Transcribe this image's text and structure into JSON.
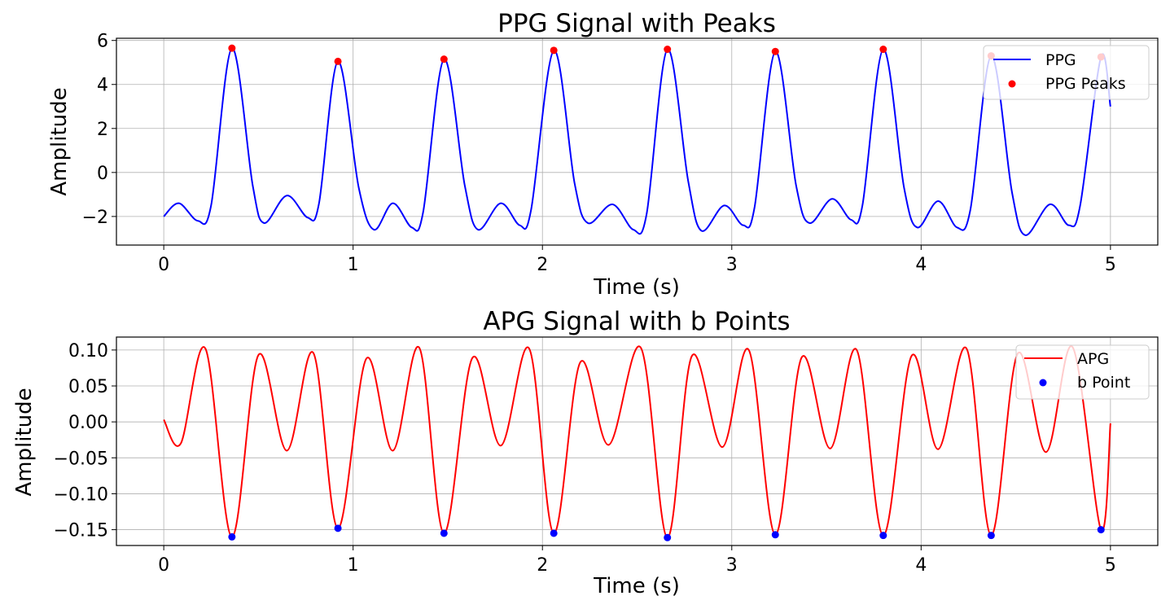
{
  "chart_data": [
    {
      "type": "line",
      "title": "PPG Signal with Peaks",
      "xlabel": "Time (s)",
      "ylabel": "Amplitude",
      "xlim": [
        -0.25,
        5.25
      ],
      "ylim": [
        -3.3,
        6.1
      ],
      "xticks": [
        0,
        1,
        2,
        3,
        4,
        5
      ],
      "xtick_labels": [
        "0",
        "1",
        "2",
        "3",
        "4",
        "5"
      ],
      "yticks": [
        -2,
        0,
        2,
        4,
        6
      ],
      "ytick_labels": [
        "−2",
        "0",
        "2",
        "4",
        "6"
      ],
      "grid": true,
      "legend_position": "top-right",
      "series": [
        {
          "name": "PPG",
          "kind": "line",
          "color": "#0000ff",
          "x": [
            0.0,
            0.08,
            0.18,
            0.25,
            0.36,
            0.47,
            0.53,
            0.65,
            0.76,
            0.82,
            0.92,
            1.03,
            1.11,
            1.21,
            1.31,
            1.37,
            1.48,
            1.59,
            1.66,
            1.78,
            1.88,
            1.94,
            2.06,
            2.17,
            2.24,
            2.37,
            2.48,
            2.55,
            2.66,
            2.77,
            2.84,
            2.96,
            3.06,
            3.12,
            3.23,
            3.34,
            3.41,
            3.53,
            3.63,
            3.69,
            3.8,
            3.91,
            3.98,
            4.09,
            4.19,
            4.26,
            4.37,
            4.48,
            4.55,
            4.68,
            4.78,
            4.84,
            4.95,
            5.0
          ],
          "y": [
            -2.0,
            -1.4,
            -2.2,
            -1.5,
            5.65,
            -0.6,
            -2.3,
            -1.05,
            -2.05,
            -1.4,
            5.05,
            -0.7,
            -2.6,
            -1.4,
            -2.5,
            -1.8,
            5.15,
            -0.6,
            -2.6,
            -1.4,
            -2.4,
            -1.7,
            5.55,
            -0.5,
            -2.3,
            -1.45,
            -2.6,
            -1.9,
            5.6,
            -0.4,
            -2.65,
            -1.5,
            -2.4,
            -1.6,
            5.5,
            -0.6,
            -2.3,
            -1.2,
            -2.15,
            -1.5,
            5.6,
            -0.7,
            -2.5,
            -1.3,
            -2.5,
            -1.7,
            5.3,
            -0.9,
            -2.85,
            -1.45,
            -2.4,
            -1.5,
            5.25,
            3.0
          ]
        },
        {
          "name": "PPG Peaks",
          "kind": "scatter",
          "color": "#ff0000",
          "x": [
            0.36,
            0.92,
            1.48,
            2.06,
            2.66,
            3.23,
            3.8,
            4.37,
            4.95
          ],
          "y": [
            5.65,
            5.05,
            5.15,
            5.55,
            5.6,
            5.5,
            5.6,
            5.3,
            5.25
          ]
        }
      ]
    },
    {
      "type": "line",
      "title": "APG Signal with b Points",
      "xlabel": "Time (s)",
      "ylabel": "Amplitude",
      "xlim": [
        -0.25,
        5.25
      ],
      "ylim": [
        -0.172,
        0.118
      ],
      "xticks": [
        0,
        1,
        2,
        3,
        4,
        5
      ],
      "xtick_labels": [
        "0",
        "1",
        "2",
        "3",
        "4",
        "5"
      ],
      "yticks": [
        0.1,
        0.05,
        0.0,
        -0.05,
        -0.1,
        -0.15
      ],
      "ytick_labels": [
        "0.10",
        "0.05",
        "0.00",
        "−0.05",
        "−0.10",
        "−0.15"
      ],
      "grid": true,
      "legend_position": "top-right",
      "series": [
        {
          "name": "APG",
          "kind": "line",
          "color": "#ff0000",
          "x": [
            0.0,
            0.09,
            0.22,
            0.36,
            0.5,
            0.65,
            0.79,
            0.92,
            1.07,
            1.21,
            1.35,
            1.48,
            1.63,
            1.78,
            1.93,
            2.06,
            2.2,
            2.35,
            2.52,
            2.66,
            2.79,
            2.95,
            3.09,
            3.23,
            3.37,
            3.52,
            3.66,
            3.8,
            3.95,
            4.09,
            4.24,
            4.37,
            4.51,
            4.66,
            4.8,
            4.95,
            5.0
          ],
          "y": [
            0.003,
            -0.03,
            0.102,
            -0.16,
            0.093,
            -0.04,
            0.096,
            -0.148,
            0.088,
            -0.04,
            0.103,
            -0.155,
            0.089,
            -0.033,
            0.102,
            -0.155,
            0.083,
            -0.032,
            0.103,
            -0.161,
            0.092,
            -0.035,
            0.1,
            -0.157,
            0.09,
            -0.037,
            0.1,
            -0.158,
            0.092,
            -0.038,
            0.102,
            -0.158,
            0.095,
            -0.042,
            0.104,
            -0.15,
            -0.002
          ]
        },
        {
          "name": "b Point",
          "kind": "scatter",
          "color": "#0000ff",
          "x": [
            0.36,
            0.92,
            1.48,
            2.06,
            2.66,
            3.23,
            3.8,
            4.37,
            4.95
          ],
          "y": [
            -0.16,
            -0.148,
            -0.155,
            -0.155,
            -0.161,
            -0.157,
            -0.158,
            -0.158,
            -0.15
          ]
        }
      ]
    }
  ]
}
